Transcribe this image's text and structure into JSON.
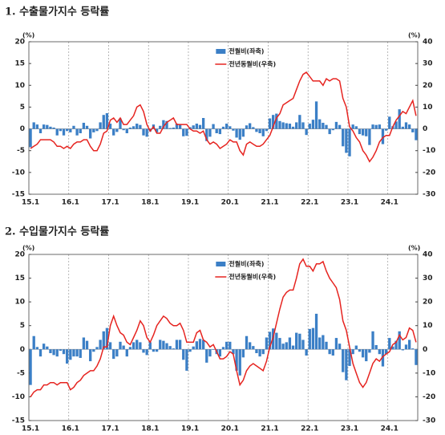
{
  "chart_data": [
    {
      "type": "bar_line",
      "title": "1. 수출물가지수 등락률",
      "y_unit_label": "(%)",
      "y2_unit_label": "(%)",
      "categories": [
        "15.1",
        null,
        null,
        null,
        null,
        null,
        null,
        null,
        null,
        null,
        null,
        null,
        "16.1",
        null,
        null,
        null,
        null,
        null,
        null,
        null,
        null,
        null,
        null,
        null,
        "17.1",
        null,
        null,
        null,
        null,
        null,
        null,
        null,
        null,
        null,
        null,
        null,
        "18.1",
        null,
        null,
        null,
        null,
        null,
        null,
        null,
        null,
        null,
        null,
        null,
        "19.1",
        null,
        null,
        null,
        null,
        null,
        null,
        null,
        null,
        null,
        null,
        null,
        "20.1",
        null,
        null,
        null,
        null,
        null,
        null,
        null,
        null,
        null,
        null,
        null,
        "21.1",
        null,
        null,
        null,
        null,
        null,
        null,
        null,
        null,
        null,
        null,
        null,
        "22.1",
        null,
        null,
        null,
        null,
        null,
        null,
        null,
        null,
        null,
        null,
        null,
        "23.1",
        null,
        null,
        null,
        null,
        null,
        null,
        null,
        null,
        null,
        null,
        null,
        "24.1",
        null,
        null,
        null,
        null,
        null,
        null,
        null,
        null
      ],
      "ylim": [
        -15,
        20
      ],
      "yticks": [
        -15,
        -10,
        -5,
        0,
        5,
        10,
        15,
        20
      ],
      "y2lim": [
        -30,
        40
      ],
      "y2ticks": [
        -30,
        -20,
        -10,
        0,
        10,
        20,
        30,
        40
      ],
      "legend": "top",
      "xgrid": true,
      "series": [
        {
          "name": "전월비(좌축)",
          "type": "bar",
          "color": "#3b7fc6",
          "values": [
            -4.2,
            1.5,
            1.0,
            -1.0,
            1.0,
            0.9,
            0.5,
            0.3,
            -1.5,
            -0.5,
            -1.5,
            -0.5,
            -0.8,
            0.7,
            -1.5,
            -1.0,
            1.4,
            0.7,
            -2.2,
            -0.8,
            -0.5,
            1.5,
            3.2,
            3.6,
            1.2,
            -1.5,
            -0.7,
            2.4,
            -0.3,
            -1.0,
            0.3,
            0.6,
            1.2,
            0.9,
            -1.5,
            -1.8,
            -0.6,
            1.0,
            -0.8,
            0.7,
            2.0,
            1.8,
            0.2,
            0.3,
            1.2,
            1.0,
            -1.7,
            -1.6,
            0.4,
            0.8,
            1.2,
            0.9,
            2.5,
            -2.8,
            -1.8,
            1.1,
            -1.0,
            -1.2,
            0.5,
            1.2,
            0.6,
            -0.4,
            -2.0,
            -2.5,
            -1.8,
            0.8,
            1.3,
            0.4,
            -0.7,
            -1.0,
            -1.7,
            -0.5,
            2.4,
            3.2,
            3.5,
            1.8,
            1.5,
            1.3,
            1.2,
            0.5,
            1.5,
            3.2,
            1.5,
            -1.4,
            1.2,
            2.1,
            6.3,
            2.2,
            1.4,
            0.9,
            -1.2,
            -0.3,
            1.6,
            0.9,
            -4.0,
            -5.5,
            -6.3,
            1.0,
            0.6,
            -1.2,
            -1.5,
            -1.7,
            -3.7,
            1.0,
            0.9,
            1.0,
            -3.5,
            -0.4,
            2.8,
            0.6,
            1.7,
            4.5,
            0.5,
            1.5,
            1.0,
            -0.8,
            -2.6
          ]
        },
        {
          "name": "전년동월비(우축)",
          "type": "line",
          "axis": "y2",
          "color": "#e62420",
          "values": [
            -9,
            -8,
            -7,
            -5,
            -5,
            -5,
            -5,
            -6,
            -8,
            -8,
            -9,
            -8,
            -9,
            -7,
            -6,
            -6,
            -5,
            -5,
            -8,
            -10,
            -10,
            -7,
            -2,
            -1,
            4,
            5,
            3,
            5,
            2,
            2,
            4,
            6,
            10,
            11,
            8,
            2,
            -1,
            1,
            -2,
            -2,
            1,
            3,
            4,
            5,
            2,
            2,
            2,
            2,
            0,
            -1,
            -1,
            -2,
            -1,
            -5,
            -7,
            -6,
            -7,
            -9,
            -8,
            -7,
            -5,
            -6,
            -6,
            -10,
            -12,
            -7,
            -6,
            -7,
            -8,
            -8,
            -7,
            -5,
            -3,
            1,
            5,
            7,
            11,
            12,
            13,
            14,
            18,
            22,
            25,
            26,
            24,
            22,
            22,
            22,
            20,
            23,
            22,
            23,
            23,
            22,
            14,
            10,
            1,
            -1,
            -4,
            -6,
            -10,
            -12,
            -15,
            -13,
            -10,
            -6,
            -4,
            -3,
            -3,
            1,
            4,
            6,
            8,
            7,
            10,
            13,
            6
          ]
        }
      ]
    },
    {
      "type": "bar_line",
      "title": "2. 수입물가지수 등락률",
      "y_unit_label": "(%)",
      "y2_unit_label": "(%)",
      "categories": [
        "15.1",
        null,
        null,
        null,
        null,
        null,
        null,
        null,
        null,
        null,
        null,
        null,
        "16.1",
        null,
        null,
        null,
        null,
        null,
        null,
        null,
        null,
        null,
        null,
        null,
        "17.1",
        null,
        null,
        null,
        null,
        null,
        null,
        null,
        null,
        null,
        null,
        null,
        "18.1",
        null,
        null,
        null,
        null,
        null,
        null,
        null,
        null,
        null,
        null,
        null,
        "19.1",
        null,
        null,
        null,
        null,
        null,
        null,
        null,
        null,
        null,
        null,
        null,
        "20.1",
        null,
        null,
        null,
        null,
        null,
        null,
        null,
        null,
        null,
        null,
        null,
        "21.1",
        null,
        null,
        null,
        null,
        null,
        null,
        null,
        null,
        null,
        null,
        null,
        "22.1",
        null,
        null,
        null,
        null,
        null,
        null,
        null,
        null,
        null,
        null,
        null,
        "23.1",
        null,
        null,
        null,
        null,
        null,
        null,
        null,
        null,
        null,
        null,
        null,
        "24.1",
        null,
        null,
        null,
        null,
        null,
        null,
        null,
        null
      ],
      "ylim": [
        -15,
        20
      ],
      "yticks": [
        -15,
        -10,
        -5,
        0,
        5,
        10,
        15,
        20
      ],
      "y2lim": [
        -30,
        40
      ],
      "y2ticks": [
        -30,
        -20,
        -10,
        0,
        10,
        20,
        30,
        40
      ],
      "legend": "top",
      "xgrid": true,
      "series": [
        {
          "name": "전월비(좌축)",
          "type": "bar",
          "color": "#3b7fc6",
          "values": [
            -7.5,
            2.8,
            0.5,
            -1.5,
            1.2,
            0.6,
            -0.8,
            -1.2,
            -1.5,
            -0.3,
            -1.0,
            -3.0,
            -2.2,
            -1.5,
            -1.5,
            -1.8,
            2.5,
            1.8,
            -2.5,
            -0.5,
            0.5,
            2.0,
            3.8,
            4.5,
            1.5,
            -2.0,
            -1.5,
            1.6,
            0.8,
            -1.5,
            0.5,
            1.5,
            2.0,
            1.5,
            -0.7,
            -1.2,
            1.5,
            -0.5,
            -0.5,
            2.0,
            1.8,
            1.3,
            0.7,
            0.2,
            2.0,
            2.0,
            -2.2,
            -4.5,
            -0.5,
            0.6,
            1.7,
            2.2,
            2.0,
            -2.8,
            -1.5,
            -0.1,
            -1.0,
            -1.5,
            0.5,
            1.6,
            1.6,
            -1.0,
            -4.5,
            -5.5,
            -1.7,
            2.8,
            1.5,
            0.7,
            -0.8,
            -1.5,
            -1.0,
            2.5,
            3.7,
            4.4,
            3.5,
            2.4,
            1.2,
            1.5,
            2.5,
            0.8,
            3.5,
            3.3,
            2.0,
            -1.3,
            4.3,
            4.5,
            7.5,
            2.5,
            3.0,
            1.6,
            -1.0,
            -1.3,
            2.4,
            1.2,
            -4.8,
            -6.5,
            -3.5,
            -1.0,
            0.8,
            -0.5,
            -1.7,
            -2.5,
            -0.7,
            3.8,
            0.9,
            -1.0,
            -3.6,
            -1.0,
            2.4,
            0.6,
            1.8,
            3.8,
            -0.2,
            1.0,
            2.0,
            0.2,
            -3.3
          ]
        },
        {
          "name": "전년동월비(우축)",
          "type": "line",
          "axis": "y2",
          "color": "#e62420",
          "values": [
            -20,
            -18,
            -17,
            -17,
            -15,
            -15,
            -14,
            -14,
            -15,
            -14,
            -14,
            -14,
            -17,
            -16,
            -14,
            -13,
            -11,
            -10,
            -9,
            -9,
            -7,
            -4,
            1,
            1,
            10,
            14,
            10,
            7,
            6,
            3,
            2,
            5,
            8,
            12,
            10,
            5,
            3,
            6,
            10,
            12,
            14,
            13,
            11,
            10,
            10,
            11,
            8,
            3,
            3,
            3,
            7,
            8,
            4,
            3,
            1,
            2,
            -1,
            -4,
            -4,
            -3,
            -1,
            -2,
            -9,
            -15,
            -13,
            -9,
            -7,
            -6,
            -7,
            -8,
            -9,
            -5,
            1,
            5,
            11,
            17,
            22,
            24,
            25,
            25,
            30,
            36,
            38,
            35,
            35,
            33,
            36,
            36,
            37,
            33,
            30,
            28,
            26,
            21,
            12,
            8,
            1,
            -6,
            -10,
            -14,
            -16,
            -14,
            -10,
            -6,
            -4,
            -5,
            -3,
            -2,
            -1,
            2,
            3,
            6,
            4,
            5,
            9,
            8,
            3
          ]
        }
      ]
    }
  ]
}
